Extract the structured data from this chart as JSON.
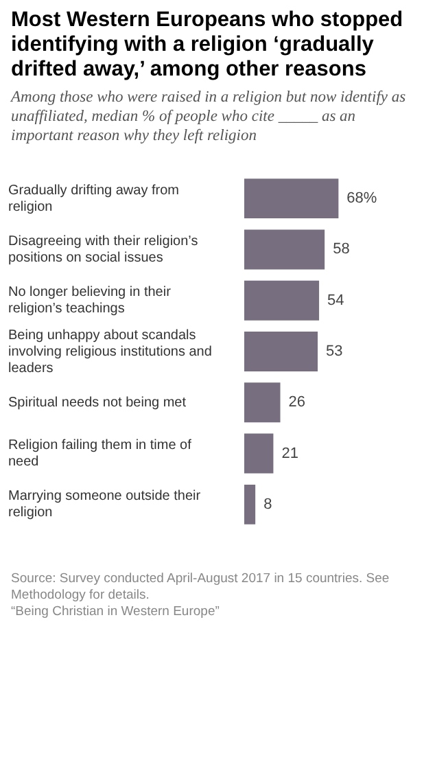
{
  "chart_data": {
    "type": "bar",
    "orientation": "horizontal",
    "title": "Most Western Europeans who stopped identifying with a religion ‘gradually drifted away,’ among other reasons",
    "subtitle": "Among those who were raised in a religion but now identify as unaffiliated, median % of people who cite _____ as an important reason why they left religion",
    "categories": [
      "Gradually drifting away from religion",
      "Disagreeing with their religion’s positions on social issues",
      "No longer believing in their religion’s teachings",
      "Being unhappy about scandals involving religious institutions and leaders",
      "Spiritual needs not being met",
      "Religion failing them in time of need",
      "Marrying someone outside their religion"
    ],
    "values": [
      68,
      58,
      54,
      53,
      26,
      21,
      8
    ],
    "value_labels": [
      "68%",
      "58",
      "54",
      "53",
      "26",
      "21",
      "8"
    ],
    "color": "#776e7f",
    "annotations": [
      "Source: Survey conducted April-August 2017 in 15 countries. See Methodology for details.",
      "“Being Christian in Western Europe”"
    ]
  }
}
